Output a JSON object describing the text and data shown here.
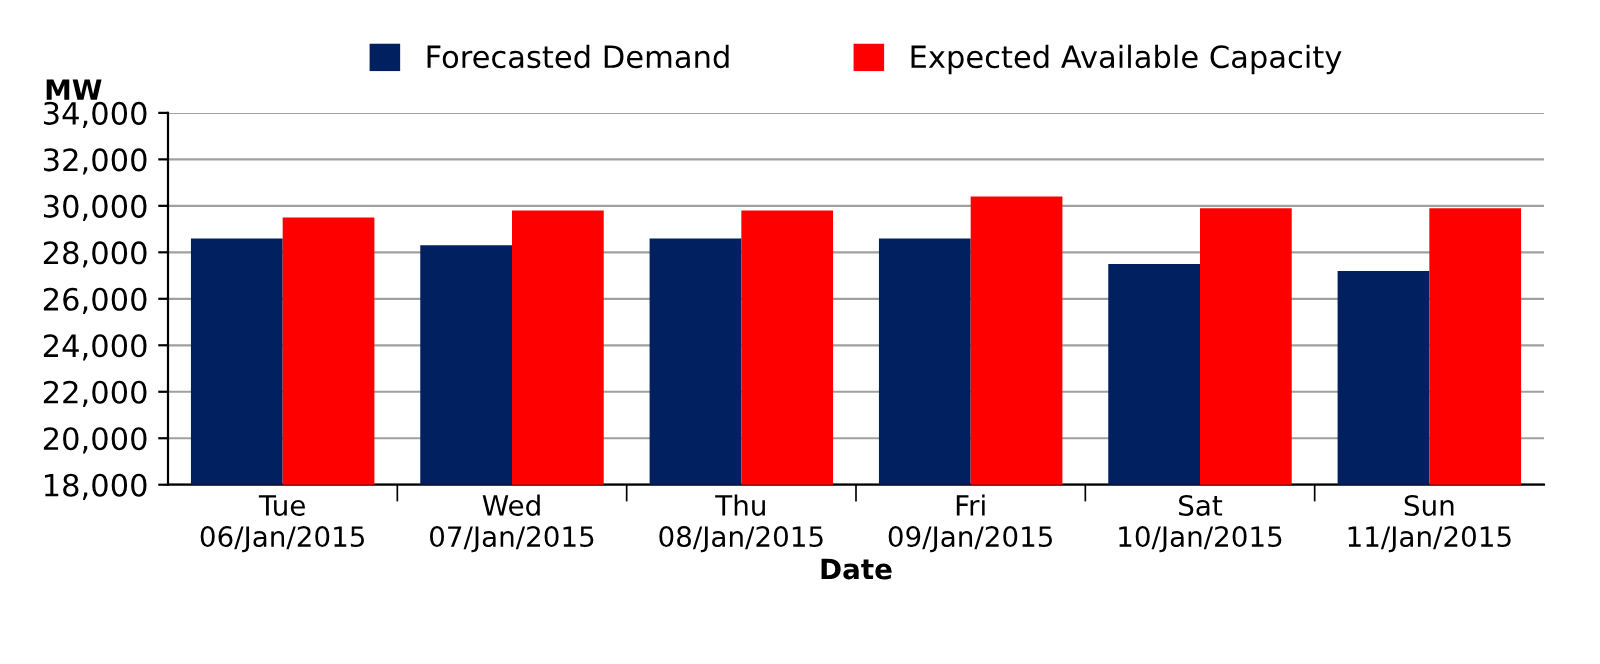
{
  "chart_data": {
    "type": "bar",
    "ylabel": "MW",
    "xlabel": "Date",
    "categories": [
      "Tue\n06/Jan/2015",
      "Wed\n07/Jan/2015",
      "Thu\n08/Jan/2015",
      "Fri\n09/Jan/2015",
      "Sat\n10/Jan/2015",
      "Sun\n11/Jan/2015"
    ],
    "series": [
      {
        "name": "Forecasted Demand",
        "color": "#002060",
        "values": [
          28600,
          28300,
          28600,
          28600,
          27500,
          27200
        ]
      },
      {
        "name": "Expected Available Capacity",
        "color": "#ff0000",
        "values": [
          29500,
          29800,
          29800,
          30400,
          29900,
          29900
        ]
      }
    ],
    "ylim": [
      18000,
      34000
    ],
    "yticks": [
      {
        "value": 18000,
        "label": "18,000"
      },
      {
        "value": 20000,
        "label": "20,000"
      },
      {
        "value": 22000,
        "label": "22,000"
      },
      {
        "value": 24000,
        "label": "24,000"
      },
      {
        "value": 26000,
        "label": "26,000"
      },
      {
        "value": 28000,
        "label": "28,000"
      },
      {
        "value": 30000,
        "label": "30,000"
      },
      {
        "value": 32000,
        "label": "32,000"
      },
      {
        "value": 34000,
        "label": "34,000"
      }
    ],
    "grid": "y",
    "legend": "top"
  }
}
